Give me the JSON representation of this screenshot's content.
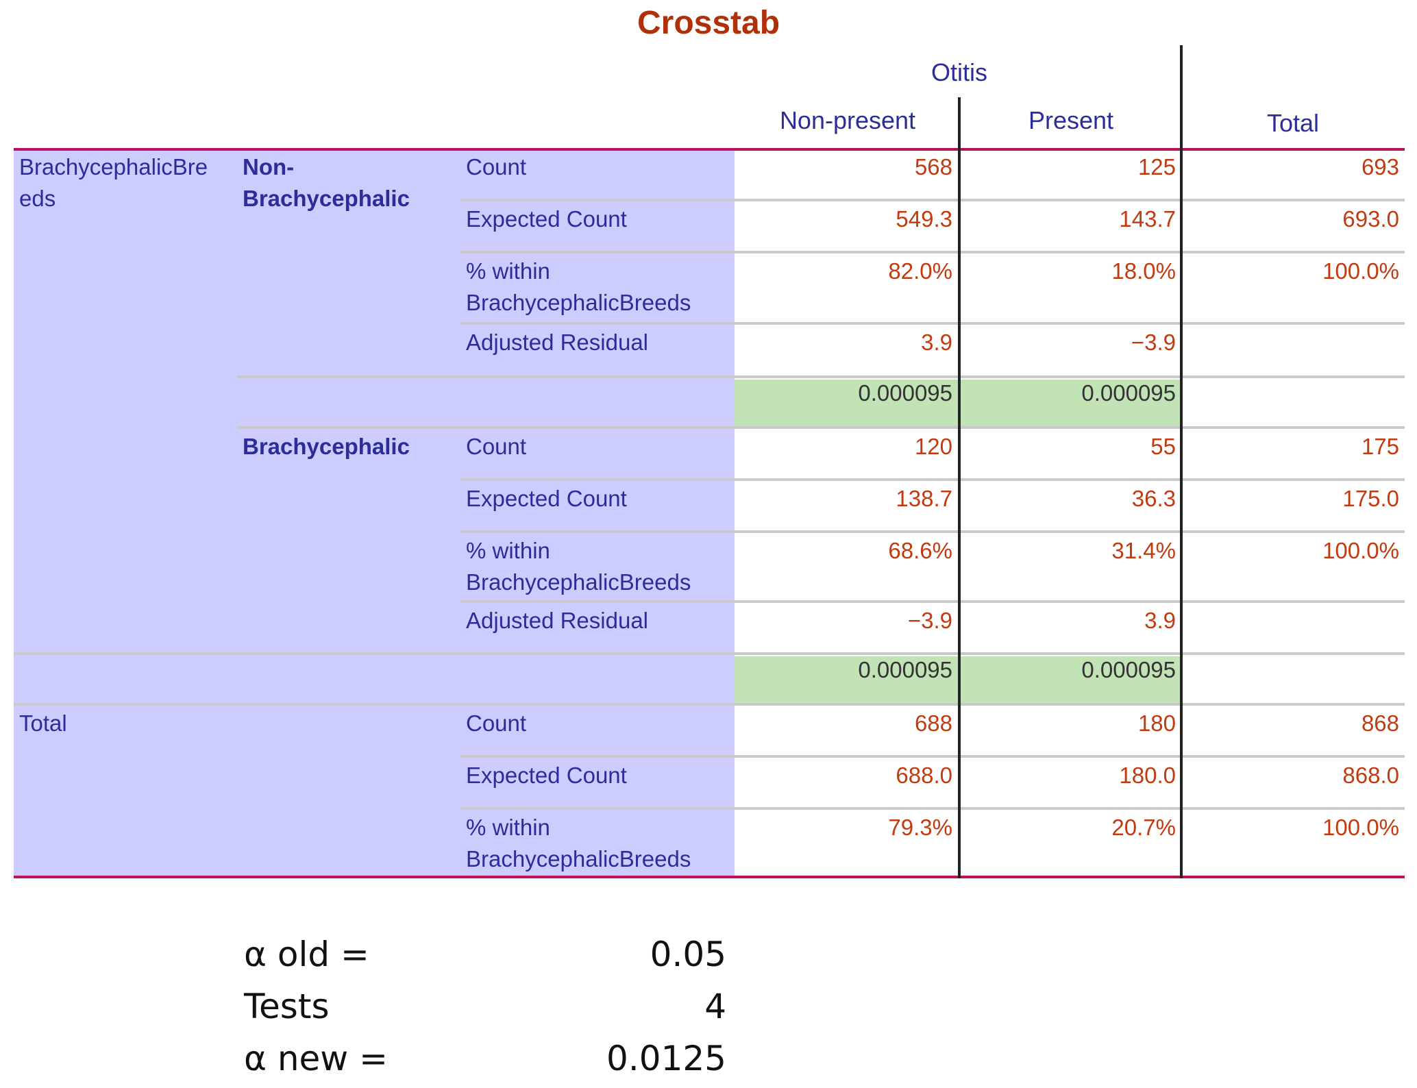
{
  "title": "Crosstab",
  "header": {
    "group": "Otitis",
    "col_nonpresent": "Non-present",
    "col_present": "Present",
    "col_total": "Total"
  },
  "row_variable": "BrachycephalicBreeds",
  "row_variable_wrapped": [
    "BrachycephalicBre",
    "eds"
  ],
  "groups": [
    {
      "label_lines": [
        "Non-",
        "Brachycephalic"
      ],
      "rows": [
        {
          "stat": "Count",
          "nonpresent": "568",
          "present": "125",
          "total": "693"
        },
        {
          "stat": "Expected Count",
          "nonpresent": "549.3",
          "present": "143.7",
          "total": "693.0"
        },
        {
          "stat_lines": [
            "% within",
            "BrachycephalicBreeds"
          ],
          "nonpresent": "82.0%",
          "present": "18.0%",
          "total": "100.0%"
        },
        {
          "stat": "Adjusted Residual",
          "nonpresent": "3.9",
          "present": "−3.9",
          "total": ""
        }
      ],
      "pvalues": {
        "nonpresent": "0.000095",
        "present": "0.000095"
      }
    },
    {
      "label_lines": [
        "Brachycephalic"
      ],
      "rows": [
        {
          "stat": "Count",
          "nonpresent": "120",
          "present": "55",
          "total": "175"
        },
        {
          "stat": "Expected Count",
          "nonpresent": "138.7",
          "present": "36.3",
          "total": "175.0"
        },
        {
          "stat_lines": [
            "% within",
            "BrachycephalicBreeds"
          ],
          "nonpresent": "68.6%",
          "present": "31.4%",
          "total": "100.0%"
        },
        {
          "stat": "Adjusted Residual",
          "nonpresent": "−3.9",
          "present": "3.9",
          "total": ""
        }
      ],
      "pvalues": {
        "nonpresent": "0.000095",
        "present": "0.000095"
      }
    }
  ],
  "total": {
    "label": "Total",
    "rows": [
      {
        "stat": "Count",
        "nonpresent": "688",
        "present": "180",
        "total": "868"
      },
      {
        "stat": "Expected Count",
        "nonpresent": "688.0",
        "present": "180.0",
        "total": "868.0"
      },
      {
        "stat_lines": [
          "% within",
          "BrachycephalicBreeds"
        ],
        "nonpresent": "79.3%",
        "present": "20.7%",
        "total": "100.0%"
      }
    ]
  },
  "bonferroni": {
    "alpha_old_label": "α old =",
    "alpha_old_value": "0.05",
    "tests_label": "Tests",
    "tests_value": "4",
    "alpha_new_label": "α new =",
    "alpha_new_value": "0.0125"
  },
  "colors": {
    "title": "#b0300a",
    "label_text": "#2d2d9a",
    "value_text": "#c23a10",
    "row_shade": "#ccccfe",
    "pvalue_shade": "#c2e3b5",
    "rule": "#b8135c"
  }
}
